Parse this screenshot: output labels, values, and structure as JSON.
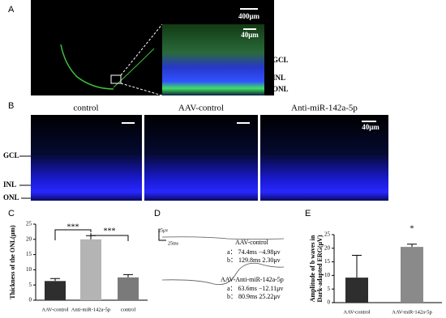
{
  "panel_labels": [
    "A",
    "B",
    "C",
    "D",
    "E"
  ],
  "panel_a": {
    "scale_overview": "400μm",
    "scale_inset": "40μm",
    "layers": [
      "GCL",
      "INL",
      "ONL"
    ]
  },
  "panel_b": {
    "columns": [
      "control",
      "AAV-control",
      "Anti-miR-142a-5p"
    ],
    "scale": "40μm",
    "layers": [
      "GCL",
      "INL",
      "ONL"
    ]
  },
  "panel_d": {
    "scale_y": "25μv",
    "scale_x": "25ms",
    "traces": [
      {
        "name": "AAV-control",
        "a": "a： 74.4ms   −4.98μv",
        "b": "b： 129.8ms   2.30μv"
      },
      {
        "name": "AAV-Anti-miR-142a-5p",
        "a": "a： 63.6ms   −12.11μv",
        "b": "b： 80.9ms   25.22μv"
      }
    ]
  },
  "chart_data": [
    {
      "type": "bar",
      "ylabel": "Thickness of the ONL(μm)",
      "categories": [
        "AAV-control",
        "Anti-miR-142a-5p",
        "control"
      ],
      "values": [
        6.3,
        20,
        7.5
      ],
      "errors": [
        0.8,
        1.2,
        0.9
      ],
      "colors": [
        "#2e2e2e",
        "#b4b4b4",
        "#7a7a7a"
      ],
      "ylim": [
        0,
        25
      ],
      "yticks": [
        0,
        5,
        10,
        15,
        20,
        25
      ],
      "annotations": [
        "***",
        "***"
      ]
    },
    {
      "type": "bar",
      "ylabel": [
        "Amplitude of b waves in",
        "Dark-adapted ERG(μV)"
      ],
      "categories": [
        "AAV-control",
        "AAV-miR-142a-5p"
      ],
      "values": [
        9.2,
        20.5
      ],
      "errors": [
        8.2,
        1
      ],
      "colors": [
        "#2e2e2e",
        "#8a8a8a"
      ],
      "ylim": [
        0,
        25
      ],
      "yticks": [
        0,
        5,
        10,
        15,
        20,
        25
      ],
      "annotations": [
        "*"
      ]
    }
  ]
}
